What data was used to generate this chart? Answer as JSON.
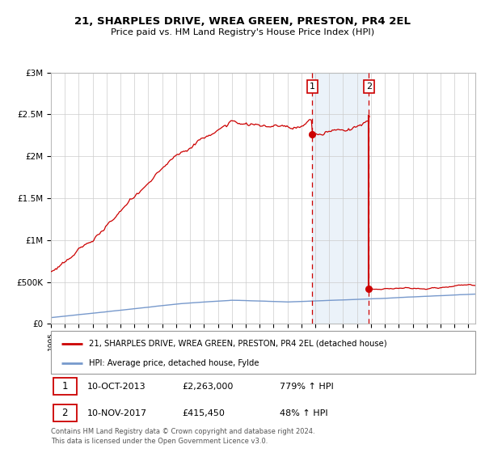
{
  "title": "21, SHARPLES DRIVE, WREA GREEN, PRESTON, PR4 2EL",
  "subtitle": "Price paid vs. HM Land Registry's House Price Index (HPI)",
  "ylim": [
    0,
    3000000
  ],
  "xlim_start": 1995.0,
  "xlim_end": 2025.5,
  "background_color": "#ffffff",
  "grid_color": "#cccccc",
  "sale1_date": 2013.78,
  "sale1_price": 2263000,
  "sale2_date": 2017.86,
  "sale2_price": 415450,
  "shade_color": "#dce9f5",
  "hpi_line_color": "#7799cc",
  "sale_line_color": "#cc0000",
  "vline_color": "#cc0000",
  "legend_label_sale": "21, SHARPLES DRIVE, WREA GREEN, PRESTON, PR4 2EL (detached house)",
  "legend_label_hpi": "HPI: Average price, detached house, Fylde",
  "annotation1_date": "10-OCT-2013",
  "annotation1_price": "£2,263,000",
  "annotation1_hpi": "779% ↑ HPI",
  "annotation2_date": "10-NOV-2017",
  "annotation2_price": "£415,450",
  "annotation2_hpi": "48% ↑ HPI",
  "footer1": "Contains HM Land Registry data © Crown copyright and database right 2024.",
  "footer2": "This data is licensed under the Open Government Licence v3.0."
}
